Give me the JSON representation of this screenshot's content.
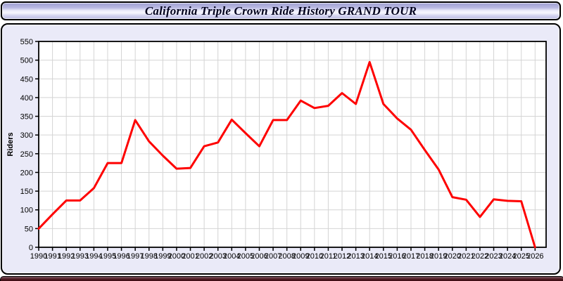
{
  "title_bar": {
    "title": "California Triple Crown Ride History GRAND TOUR"
  },
  "chart_data": {
    "type": "line",
    "title": "California Triple Crown Ride History GRAND TOUR",
    "xlabel": "",
    "ylabel": "Riders",
    "x": [
      1990,
      1991,
      1992,
      1993,
      1994,
      1995,
      1996,
      1997,
      1998,
      1999,
      2000,
      2001,
      2002,
      2003,
      2004,
      2005,
      2006,
      2007,
      2008,
      2009,
      2010,
      2011,
      2012,
      2013,
      2014,
      2015,
      2016,
      2017,
      2018,
      2019,
      2020,
      2021,
      2022,
      2023,
      2024,
      2025,
      2026
    ],
    "series": [
      {
        "name": "Riders",
        "color": "#fe0000",
        "values": [
          50,
          88,
          125,
          125,
          158,
          225,
          225,
          340,
          283,
          245,
          210,
          212,
          270,
          280,
          341,
          305,
          270,
          340,
          340,
          392,
          372,
          378,
          412,
          383,
          495,
          383,
          344,
          314,
          260,
          208,
          134,
          127,
          81,
          128,
          124,
          123,
          0
        ]
      }
    ],
    "xlim": [
      1990,
      2026.8
    ],
    "ylim": [
      0,
      550
    ],
    "y_ticks": [
      0,
      50,
      100,
      150,
      200,
      250,
      300,
      350,
      400,
      450,
      500,
      550
    ],
    "grid": true,
    "legend": "none",
    "plot_bg": "#ffffff",
    "grid_color": "#d4d4d4",
    "frame_color": "#000000",
    "tick_label_color": "#000000"
  },
  "panel": {
    "bg": "#eaeaf8"
  },
  "footer_bar": {
    "color": "#4a141c"
  }
}
